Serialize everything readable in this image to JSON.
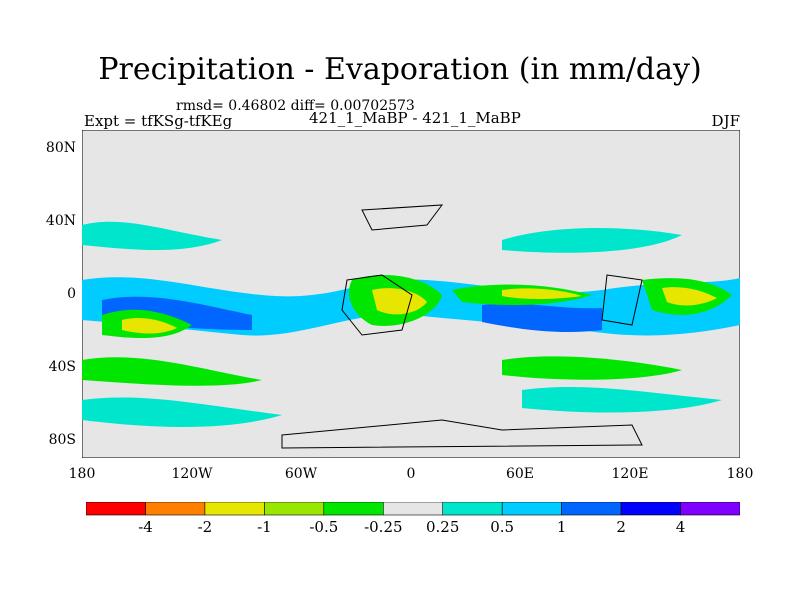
{
  "title": "Precipitation - Evaporation (in mm/day)",
  "stats": "rmsd= 0.46802 diff= 0.00702573",
  "experiment": "Expt = tfKSg-tfKEg",
  "subtitle": "421_1_MaBP - 421_1_MaBP",
  "season": "DJF",
  "lat_ticks": [
    "80N",
    "40N",
    "0",
    "40S",
    "80S"
  ],
  "lon_ticks": [
    "180",
    "120W",
    "60W",
    "0",
    "60E",
    "120E",
    "180"
  ],
  "colorbar": {
    "colors": [
      "#ff0000",
      "#ff8000",
      "#e6e600",
      "#99e600",
      "#00e600",
      "#e6e6e6",
      "#00e6cc",
      "#00ccff",
      "#0066ff",
      "#0000ff",
      "#8000ff"
    ],
    "labels": [
      "-4",
      "-2",
      "-1",
      "-0.5",
      "-0.25",
      "0.25",
      "0.5",
      "1",
      "2",
      "4"
    ]
  }
}
